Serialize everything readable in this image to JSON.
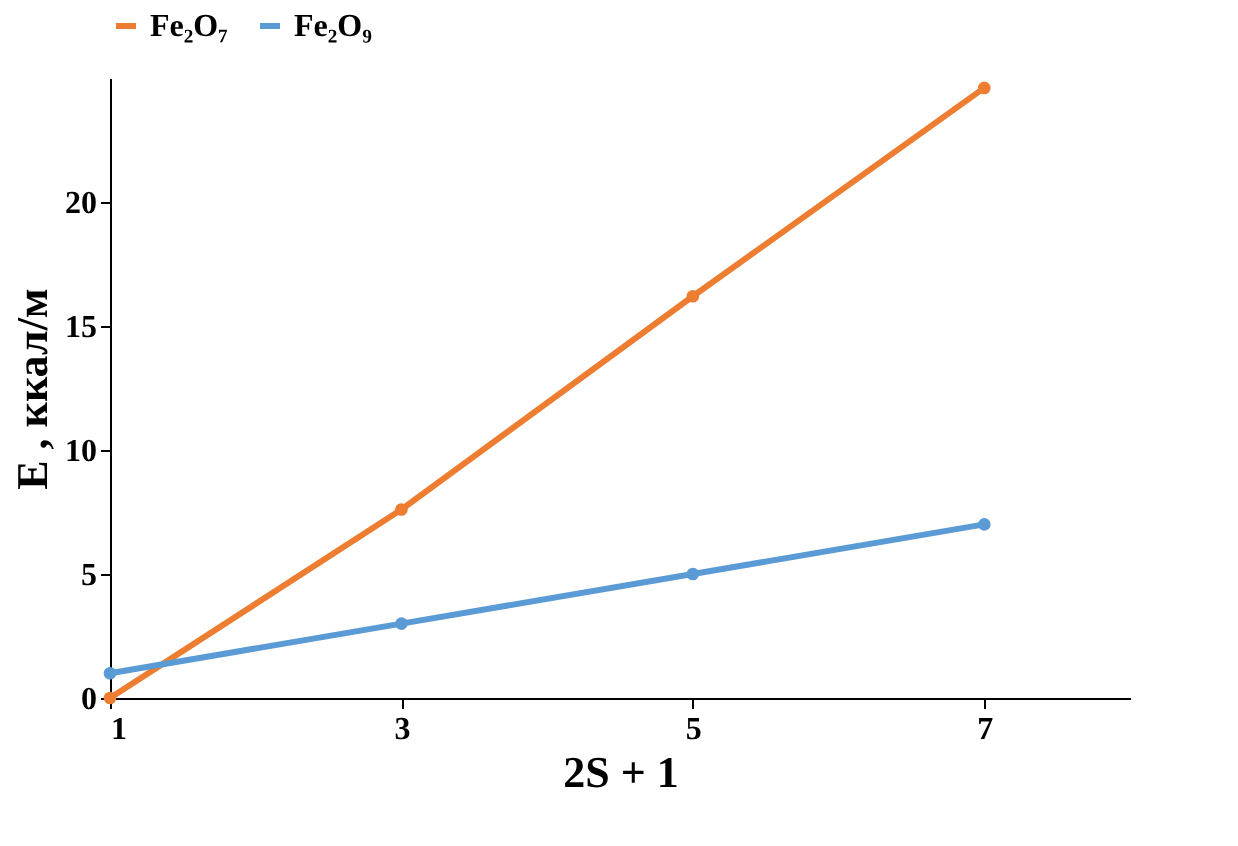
{
  "chart_data": {
    "type": "line",
    "xlabel": "2S + 1",
    "ylabel": "E , ккал/м",
    "x": [
      1,
      3,
      5,
      7
    ],
    "series": [
      {
        "name": "Fe₂O₇",
        "color": "#ed7d31",
        "values": [
          0,
          7.6,
          16.2,
          24.6
        ]
      },
      {
        "name": "Fe₂O₉",
        "color": "#5b9bd5",
        "values": [
          1,
          3,
          5,
          7
        ]
      }
    ],
    "xlim": [
      1,
      8
    ],
    "xticks": [
      1,
      3,
      5,
      7
    ],
    "ylim": [
      0,
      25
    ],
    "yticks": [
      0,
      5,
      10,
      15,
      20
    ],
    "grid": false,
    "legend": "top",
    "marker": "circle",
    "line_style": "solid"
  }
}
